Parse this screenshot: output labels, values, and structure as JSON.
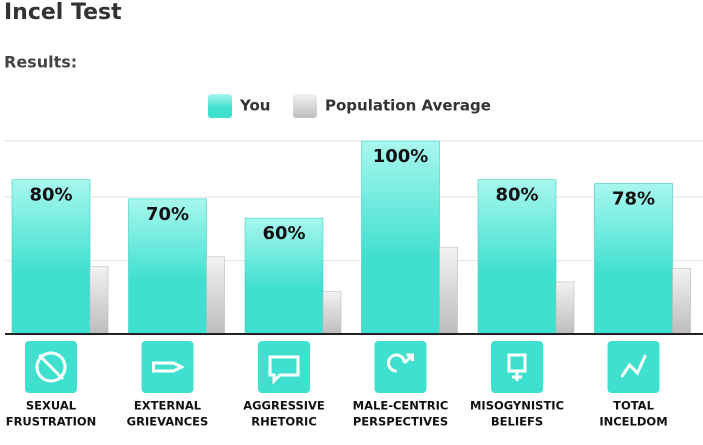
{
  "header": {
    "title": "Incel Test",
    "subtitle": "Results:"
  },
  "chart_data": {
    "type": "bar",
    "categories": [
      [
        "SEXUAL",
        "FRUSTRATION"
      ],
      [
        "EXTERNAL",
        "GRIEVANCES"
      ],
      [
        "AGGRESSIVE",
        "RHETORIC"
      ],
      [
        "MALE-CENTRIC",
        "PERSPECTIVES"
      ],
      [
        "MISOGYNISTIC",
        "BELIEFS"
      ],
      [
        "TOTAL",
        "INCELDOM"
      ]
    ],
    "series": [
      {
        "name": "You",
        "color": "#40e0d0",
        "values": [
          80,
          70,
          60,
          100,
          80,
          78
        ],
        "value_labels": [
          "80%",
          "70%",
          "60%",
          "100%",
          "80%",
          "78%"
        ]
      },
      {
        "name": "Population Average",
        "color": "#c8c8c8",
        "values": [
          35,
          40,
          22,
          45,
          27,
          34
        ]
      }
    ],
    "ylim": [
      0,
      100
    ],
    "yticks": [
      38,
      71,
      100
    ],
    "grid": true
  }
}
